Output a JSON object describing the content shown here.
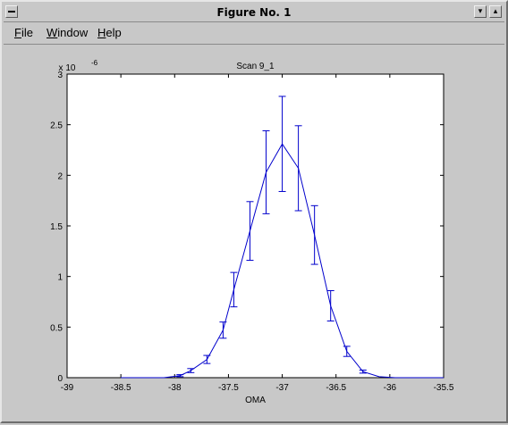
{
  "window": {
    "title": "Figure No. 1",
    "menu": [
      "File",
      "Window",
      "Help"
    ]
  },
  "colors": {
    "background": "#c8c8c8",
    "axes_bg": "#ffffff",
    "series": "#0000cc"
  },
  "chart_data": {
    "type": "line",
    "title": "Scan 9_1",
    "xlabel": "OMA",
    "ylabel": "",
    "y_exponent_label": "x 10",
    "y_exponent": "-6",
    "xlim": [
      -39,
      -35.5
    ],
    "ylim": [
      0,
      3
    ],
    "xticks": [
      -39,
      -38.5,
      -38,
      -37.5,
      -37,
      -36.5,
      -36,
      -35.5
    ],
    "xtick_labels": [
      "-39",
      "-38.5",
      "-38",
      "-37.5",
      "-37",
      "-36.5",
      "-36",
      "-35.5"
    ],
    "yticks": [
      0,
      0.5,
      1,
      1.5,
      2,
      2.5,
      3
    ],
    "ytick_labels": [
      "0",
      "0.5",
      "1",
      "1.5",
      "2",
      "2.5",
      "3"
    ],
    "grid": false,
    "series": [
      {
        "x": [
          -38.5,
          -38.35,
          -38.1,
          -37.95,
          -37.85,
          -37.7,
          -37.55,
          -37.45,
          -37.3,
          -37.15,
          -37.0,
          -36.85,
          -36.7,
          -36.55,
          -36.4,
          -36.25,
          -36.1,
          -35.95,
          -35.5
        ],
        "y": [
          0,
          0,
          0.0,
          0.02,
          0.07,
          0.18,
          0.47,
          0.87,
          1.45,
          2.03,
          2.31,
          2.07,
          1.41,
          0.71,
          0.26,
          0.06,
          0.01,
          0,
          0
        ],
        "err": [
          0,
          0,
          0,
          0.01,
          0.02,
          0.04,
          0.08,
          0.17,
          0.29,
          0.41,
          0.47,
          0.42,
          0.29,
          0.15,
          0.05,
          0.015,
          0,
          0,
          0
        ]
      }
    ]
  }
}
